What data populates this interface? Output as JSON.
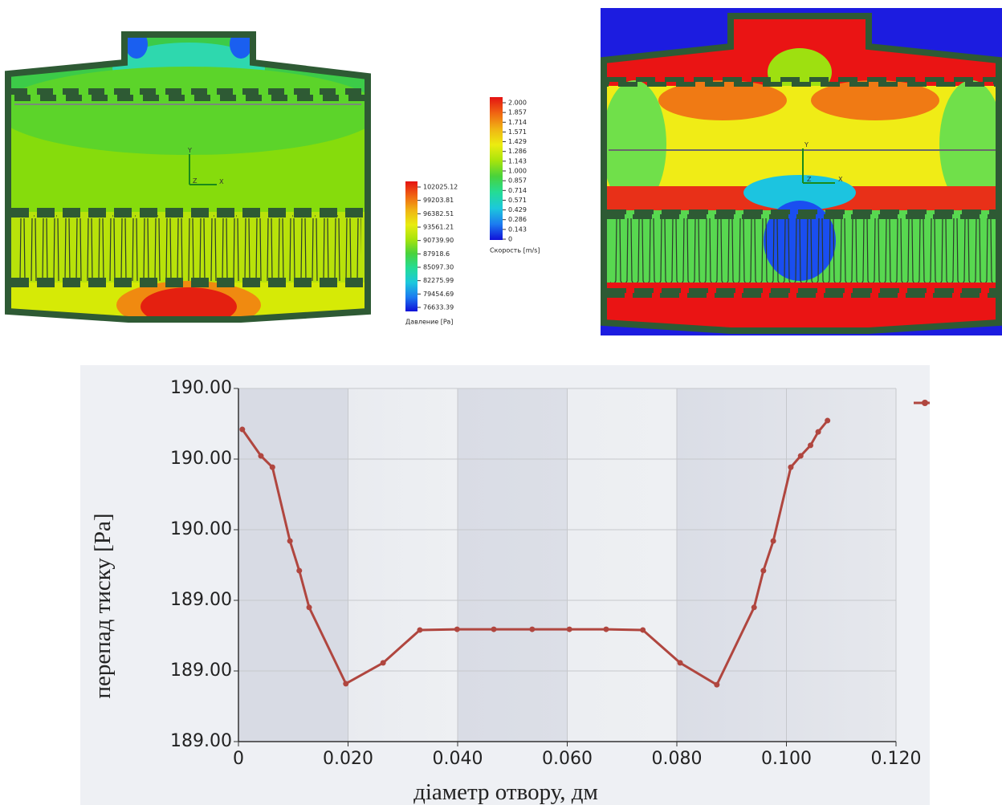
{
  "chart_data": [
    {
      "type": "line",
      "x_label": "діаметр   отвору, дм",
      "y_label": "перепад тиску [Pa]",
      "xlim": [
        0,
        0.12
      ],
      "xticks": [
        0,
        {
          "value": 0.02,
          "label": "0.020"
        },
        {
          "value": 0.04,
          "label": "0.040"
        },
        {
          "value": 0.06,
          "label": "0.060"
        },
        {
          "value": 0.08,
          "label": "0.080"
        },
        {
          "value": 0.1,
          "label": "0.100"
        },
        {
          "value": 0.12,
          "label": "0.120"
        }
      ],
      "ylim": [
        189.0,
        190.0
      ],
      "yticks": [
        {
          "value": 189.0,
          "label": "189.00"
        },
        {
          "value": 189.2,
          "label": "189.00"
        },
        {
          "value": 189.4,
          "label": "189.00"
        },
        {
          "value": 189.6,
          "label": "190.00"
        },
        {
          "value": 189.8,
          "label": "190.00"
        },
        {
          "value": 190.0,
          "label": "190.00"
        }
      ],
      "grid": true,
      "x": [
        0.0007,
        0.0041,
        0.0062,
        0.0094,
        0.0111,
        0.0129,
        0.0196,
        0.0264,
        0.0331,
        0.0399,
        0.0466,
        0.0536,
        0.0604,
        0.0671,
        0.0738,
        0.0806,
        0.0873,
        0.0941,
        0.0958,
        0.0976,
        0.1008,
        0.1026,
        0.1044,
        0.1058,
        0.1075
      ],
      "series": [
        {
          "color": "#b0463f",
          "values": [
            189.884,
            189.809,
            189.777,
            189.568,
            189.484,
            189.38,
            189.164,
            189.223,
            189.316,
            189.318,
            189.318,
            189.318,
            189.318,
            189.318,
            189.316,
            189.223,
            189.161,
            189.38,
            189.484,
            189.568,
            189.777,
            189.809,
            189.839,
            189.877,
            189.909
          ]
        }
      ]
    },
    {
      "type": "colorbar",
      "title": "Давление [Pa]",
      "colors": [
        "#e41212",
        "#f06412",
        "#f0b414",
        "#e8ec10",
        "#a8e40c",
        "#48d23c",
        "#24dc96",
        "#1cc8dc",
        "#1c7cf0",
        "#1010d8"
      ],
      "ticks": [
        102025.12,
        99203.81,
        96382.51,
        93561.21,
        {
          "value": 90739.9,
          "label": "90739.90"
        },
        87918.6,
        {
          "value": 85097.3,
          "label": "85097.30"
        },
        82275.99,
        79454.69,
        76633.39
      ]
    },
    {
      "type": "colorbar",
      "title": "Скорость [m/s]",
      "colors": [
        "#e41212",
        "#f06412",
        "#f0b414",
        "#ecec10",
        "#a8e40c",
        "#48d23c",
        "#24dc96",
        "#1cc8dc",
        "#1c7cf0",
        "#1010d8"
      ],
      "ticks": [
        {
          "value": 2,
          "label": "2.000"
        },
        1.857,
        1.714,
        1.571,
        1.429,
        1.286,
        1.143,
        {
          "value": 1,
          "label": "1.000"
        },
        0.857,
        0.714,
        0.571,
        0.429,
        0.286,
        0.143,
        0
      ]
    }
  ],
  "triad": [
    "X",
    "Y",
    "Z"
  ]
}
